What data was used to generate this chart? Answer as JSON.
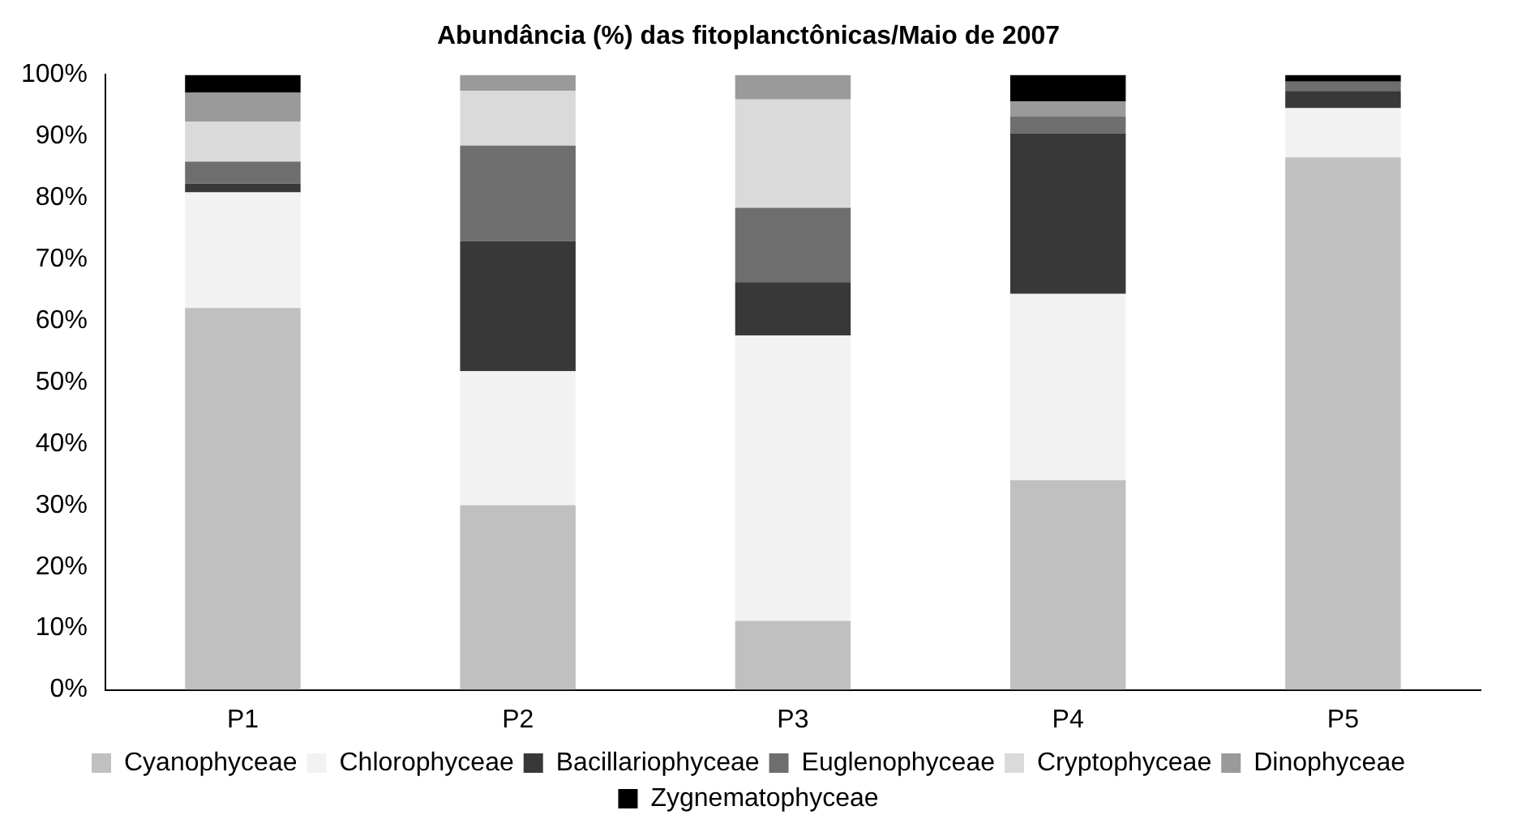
{
  "chart_data": {
    "type": "bar",
    "title": "Abundância (%) das fitoplanctônicas/Maio de 2007",
    "stacked": true,
    "categories": [
      "P1",
      "P2",
      "P3",
      "P4",
      "P5"
    ],
    "series": [
      {
        "name": "Cyanophyceae",
        "color": "#c0c0c0",
        "values": [
          62.1,
          30.0,
          11.2,
          34.1,
          86.6
        ]
      },
      {
        "name": "Chlorophyceae",
        "color": "#f2f2f2",
        "values": [
          18.8,
          21.8,
          46.4,
          30.3,
          8.0
        ]
      },
      {
        "name": "Bacillariophyceae",
        "color": "#383838",
        "values": [
          1.4,
          21.2,
          8.7,
          26.1,
          2.8
        ]
      },
      {
        "name": "Euglenophyceae",
        "color": "#6e6e6e",
        "values": [
          3.6,
          15.5,
          12.1,
          2.7,
          1.5
        ]
      },
      {
        "name": "Cryptophyceae",
        "color": "#dadada",
        "values": [
          6.5,
          8.9,
          17.6,
          0,
          0
        ]
      },
      {
        "name": "Dinophyceae",
        "color": "#9a9a9a",
        "values": [
          4.7,
          2.6,
          4.0,
          2.5,
          0
        ]
      },
      {
        "name": "Zygnematophyceae",
        "color": "#000000",
        "values": [
          2.9,
          0,
          0,
          4.3,
          1.1
        ]
      }
    ],
    "ylim": [
      0,
      100
    ],
    "yticks": [
      {
        "value": 0,
        "label": "0%"
      },
      {
        "value": 10,
        "label": "10%"
      },
      {
        "value": 20,
        "label": "20%"
      },
      {
        "value": 30,
        "label": "30%"
      },
      {
        "value": 40,
        "label": "40%"
      },
      {
        "value": 50,
        "label": "50%"
      },
      {
        "value": 60,
        "label": "60%"
      },
      {
        "value": 70,
        "label": "70%"
      },
      {
        "value": 80,
        "label": "80%"
      },
      {
        "value": 90,
        "label": "90%"
      },
      {
        "value": 100,
        "label": "100%"
      }
    ],
    "grid": false,
    "legend": "bottom"
  }
}
